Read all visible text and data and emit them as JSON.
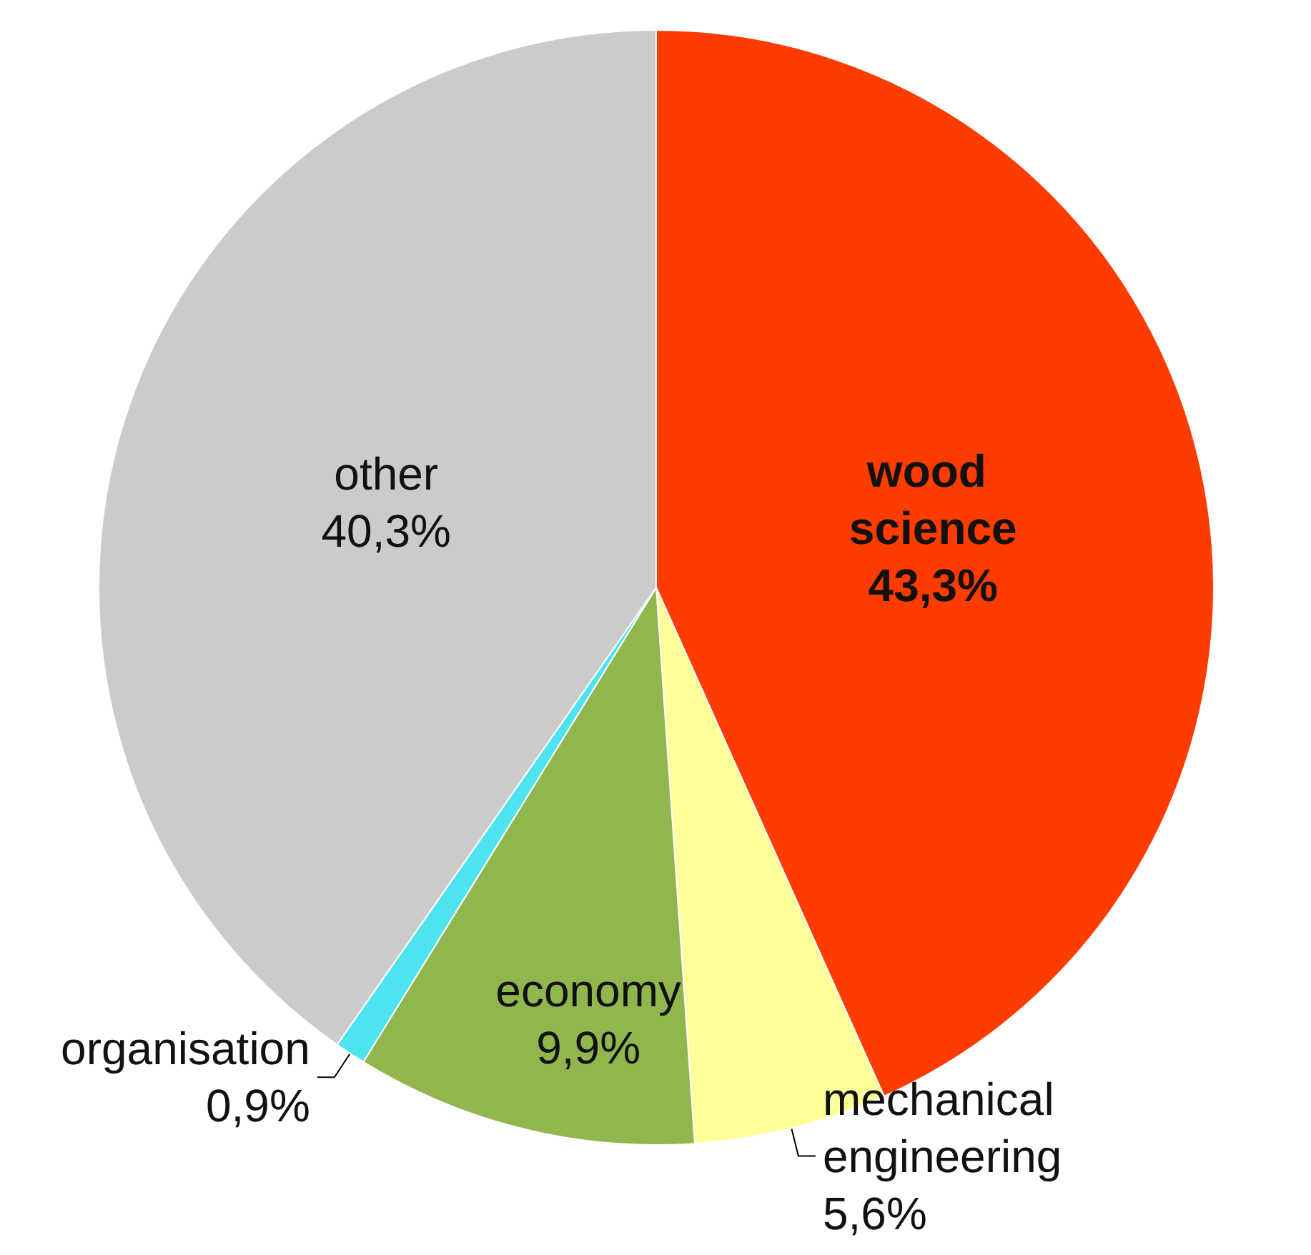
{
  "chart_data": {
    "type": "pie",
    "categories": [
      "wood science",
      "mechanical engineering",
      "economy",
      "organisation",
      "other"
    ],
    "values": [
      43.3,
      5.6,
      9.9,
      0.9,
      40.3
    ],
    "value_labels": [
      "43,3%",
      "5,6%",
      "9,9%",
      "0,9%",
      "40,3%"
    ],
    "colors": [
      "#ff3c00",
      "#ffff99",
      "#92b64e",
      "#4de3ef",
      "#cbcbcb"
    ]
  }
}
